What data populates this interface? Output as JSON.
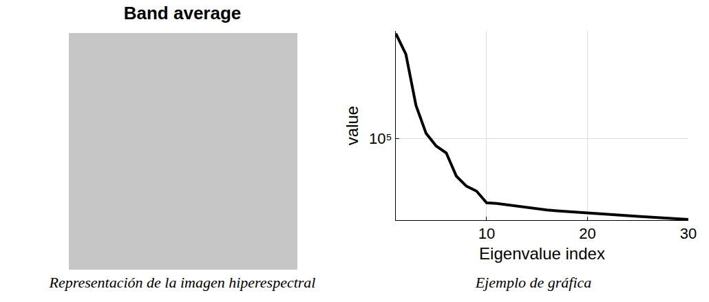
{
  "chart_data": [
    {
      "type": "image",
      "title": "Band average",
      "caption": "Representación de la imagen hiperespectral"
    },
    {
      "type": "line",
      "caption": "Ejemplo de gráfica",
      "x_label": "Eigenvalue index",
      "y_label": "value",
      "x": [
        1,
        2,
        3,
        4,
        5,
        6,
        7,
        8,
        9,
        10,
        11,
        12,
        13,
        14,
        15,
        16,
        17,
        18,
        19,
        20,
        21,
        22,
        23,
        24,
        25,
        26,
        27,
        28,
        29,
        30
      ],
      "values": [
        500000,
        364000,
        166000,
        108000,
        89000,
        80000,
        56000,
        48000,
        44500,
        37200,
        36800,
        36000,
        35500,
        34800,
        34000,
        33300,
        32900,
        32500,
        32200,
        31800,
        31400,
        31100,
        30800,
        30500,
        30200,
        29900,
        29700,
        29400,
        29100,
        28800
      ],
      "color": "#000000",
      "xlim": [
        1,
        30
      ],
      "xticks": [
        10,
        20,
        30
      ],
      "ylim": [
        28500,
        520000
      ],
      "yticks": [
        {
          "value": 100000,
          "label": "10⁵"
        }
      ],
      "log": "y",
      "grid": true
    }
  ]
}
